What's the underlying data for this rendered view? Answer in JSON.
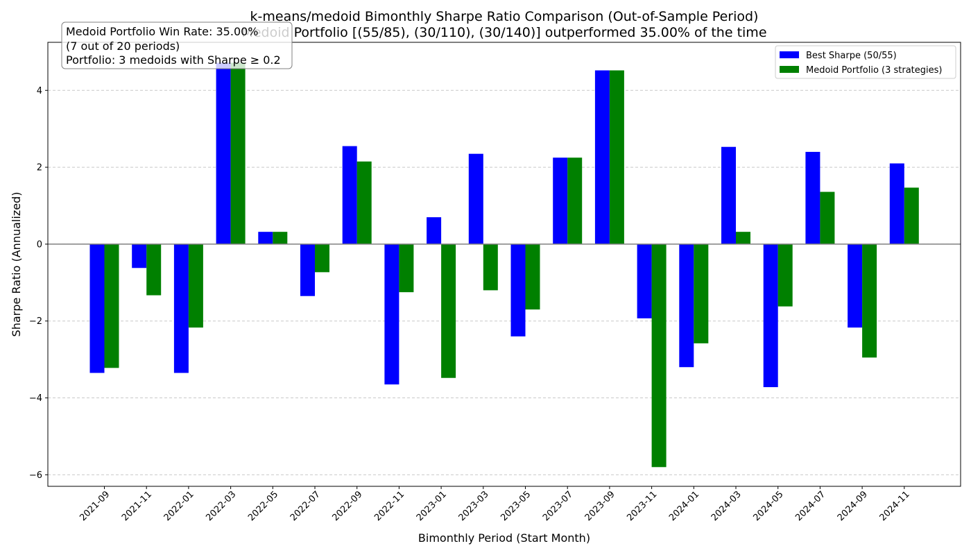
{
  "chart_data": {
    "type": "bar",
    "title": "k-means/medoid Bimonthly Sharpe Ratio Comparison (Out-of-Sample Period)",
    "subtitle": "Medoid Portfolio [(55/85), (30/110), (30/140)] outperformed 35.00% of the time",
    "xlabel": "Bimonthly Period (Start Month)",
    "ylabel": "Sharpe Ratio (Annualized)",
    "ylim": [
      -6.3,
      5.25
    ],
    "yticks": [
      -6,
      -4,
      -2,
      0,
      2,
      4
    ],
    "ytick_labels": [
      "−6",
      "−4",
      "−2",
      "0",
      "2",
      "4"
    ],
    "grid": "horizontal dashed",
    "legend_position": "top-right",
    "categories": [
      "2021-09",
      "2021-11",
      "2022-01",
      "2022-03",
      "2022-05",
      "2022-07",
      "2022-09",
      "2022-11",
      "2023-01",
      "2023-03",
      "2023-05",
      "2023-07",
      "2023-09",
      "2023-11",
      "2024-01",
      "2024-03",
      "2024-05",
      "2024-07",
      "2024-09",
      "2024-11"
    ],
    "series": [
      {
        "name": "Best Sharpe (50/55)",
        "color": "#0000ff",
        "values": [
          -3.35,
          -0.62,
          -3.35,
          4.72,
          0.32,
          -1.35,
          2.55,
          -3.65,
          0.7,
          2.35,
          -2.4,
          2.25,
          4.52,
          -1.93,
          -3.2,
          2.53,
          -3.72,
          2.4,
          -2.17,
          2.1
        ]
      },
      {
        "name": "Medoid Portfolio (3 strategies)",
        "color": "#008000",
        "values": [
          -3.22,
          -1.33,
          -2.17,
          4.72,
          0.32,
          -0.73,
          2.15,
          -1.25,
          -3.48,
          -1.2,
          -1.7,
          2.25,
          4.52,
          -5.8,
          -2.58,
          0.32,
          -1.62,
          1.36,
          -2.95,
          1.47
        ]
      }
    ],
    "annotation": {
      "lines": [
        "Medoid Portfolio Win Rate: 35.00%",
        "(7 out of 20 periods)",
        "Portfolio: 3 medoids with Sharpe ≥ 0.2"
      ]
    }
  }
}
